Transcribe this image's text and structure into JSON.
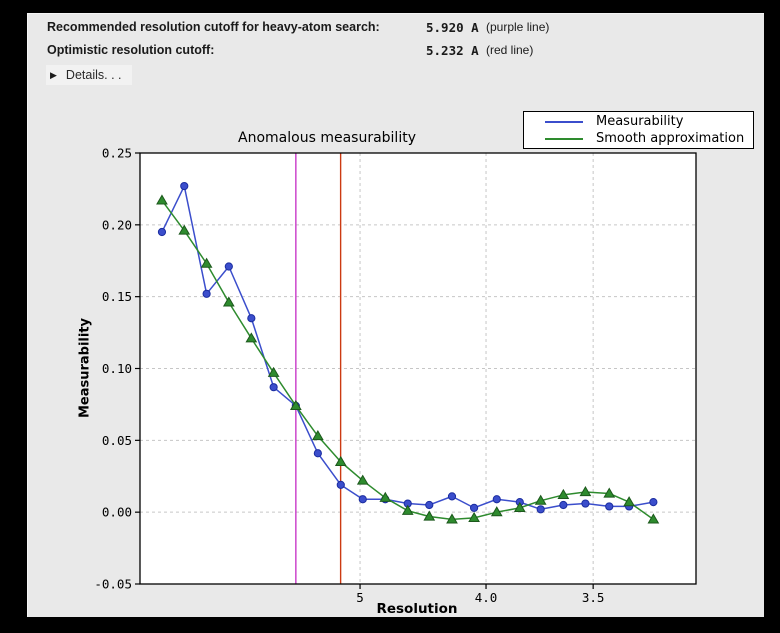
{
  "header": {
    "rows": [
      {
        "label": "Recommended resolution cutoff for heavy-atom search:",
        "value": "5.920 A",
        "note": "(purple line)"
      },
      {
        "label": "Optimistic resolution cutoff:",
        "value": "5.232 A",
        "note": "(red line)"
      }
    ],
    "details_label": "Details. . ."
  },
  "chart_data": {
    "type": "line",
    "title": "Anomalous measurability",
    "xlabel": "Resolution",
    "ylabel": "Measurability",
    "grid": true,
    "legend_position": "top-right",
    "ylim": [
      -0.05,
      0.25
    ],
    "yticks": [
      0.25,
      0.2,
      0.15,
      0.1,
      0.05,
      0.0,
      -0.05
    ],
    "ytick_labels": [
      "0.25",
      "0.20",
      "0.15",
      "0.10",
      "0.05",
      "0.00",
      "-0.05"
    ],
    "x_axis": {
      "transform": "1/d^2",
      "units": "Angstrom (d-spacing, decreasing left to right)",
      "tick_d_values": [
        5.0,
        4.0,
        3.5
      ],
      "tick_labels": [
        "5",
        "4.0",
        "3.5"
      ],
      "range_inv_d_sq": [
        0.0007,
        0.1
      ]
    },
    "d_spacing": [
      14.71,
      10.78,
      8.91,
      7.77,
      6.97,
      6.38,
      5.92,
      5.55,
      5.23,
      4.97,
      4.74,
      4.54,
      4.37,
      4.21,
      4.07,
      3.94,
      3.82,
      3.72,
      3.62,
      3.53,
      3.44,
      3.37,
      3.29
    ],
    "series": [
      {
        "name": "Measurability",
        "color": "#3b4ecc",
        "marker": "circle",
        "marker_edge": "#1b2da0",
        "values": [
          0.195,
          0.227,
          0.152,
          0.171,
          0.135,
          0.087,
          0.074,
          0.041,
          0.019,
          0.009,
          0.009,
          0.006,
          0.005,
          0.011,
          0.003,
          0.009,
          0.007,
          0.002,
          0.005,
          0.006,
          0.004,
          0.004,
          0.007
        ]
      },
      {
        "name": "Smooth approximation",
        "color": "#2e8b2e",
        "marker": "triangle",
        "marker_edge": "#1c581c",
        "values": [
          0.217,
          0.196,
          0.173,
          0.146,
          0.121,
          0.097,
          0.074,
          0.053,
          0.035,
          0.022,
          0.01,
          0.001,
          -0.003,
          -0.005,
          -0.004,
          0.0,
          0.003,
          0.008,
          0.012,
          0.014,
          0.013,
          0.007,
          -0.005
        ]
      }
    ],
    "vlines": [
      {
        "name": "purple line",
        "d": 5.92,
        "color": "#c839c8"
      },
      {
        "name": "red line",
        "d": 5.232,
        "color": "#cc3a12"
      }
    ],
    "grid_color": "#c6c6c6"
  }
}
